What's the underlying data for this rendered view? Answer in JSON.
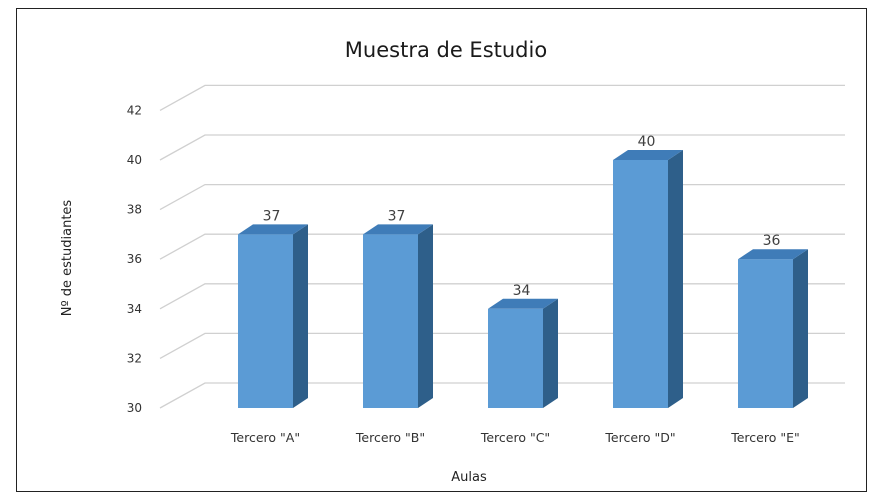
{
  "chart_data": {
    "type": "bar",
    "title": "Muestra de Estudio",
    "xlabel": "Aulas",
    "ylabel": "Nº de estudiantes",
    "categories": [
      "Tercero \"A\"",
      "Tercero \"B\"",
      "Tercero \"C\"",
      "Tercero \"D\"",
      "Tercero \"E\""
    ],
    "values": [
      37,
      37,
      34,
      40,
      36
    ],
    "data_labels": [
      "37",
      "37",
      "34",
      "40",
      "36"
    ],
    "yticks": [
      "30",
      "32",
      "34",
      "36",
      "38",
      "40",
      "42"
    ],
    "ylim": [
      30,
      42
    ],
    "grid": true,
    "legend": "none",
    "colors": {
      "bar_front": "#5b9bd5",
      "bar_side": "#2e5f8a",
      "bar_top": "#3f7cb8",
      "grid": "#d0d0d0"
    }
  }
}
